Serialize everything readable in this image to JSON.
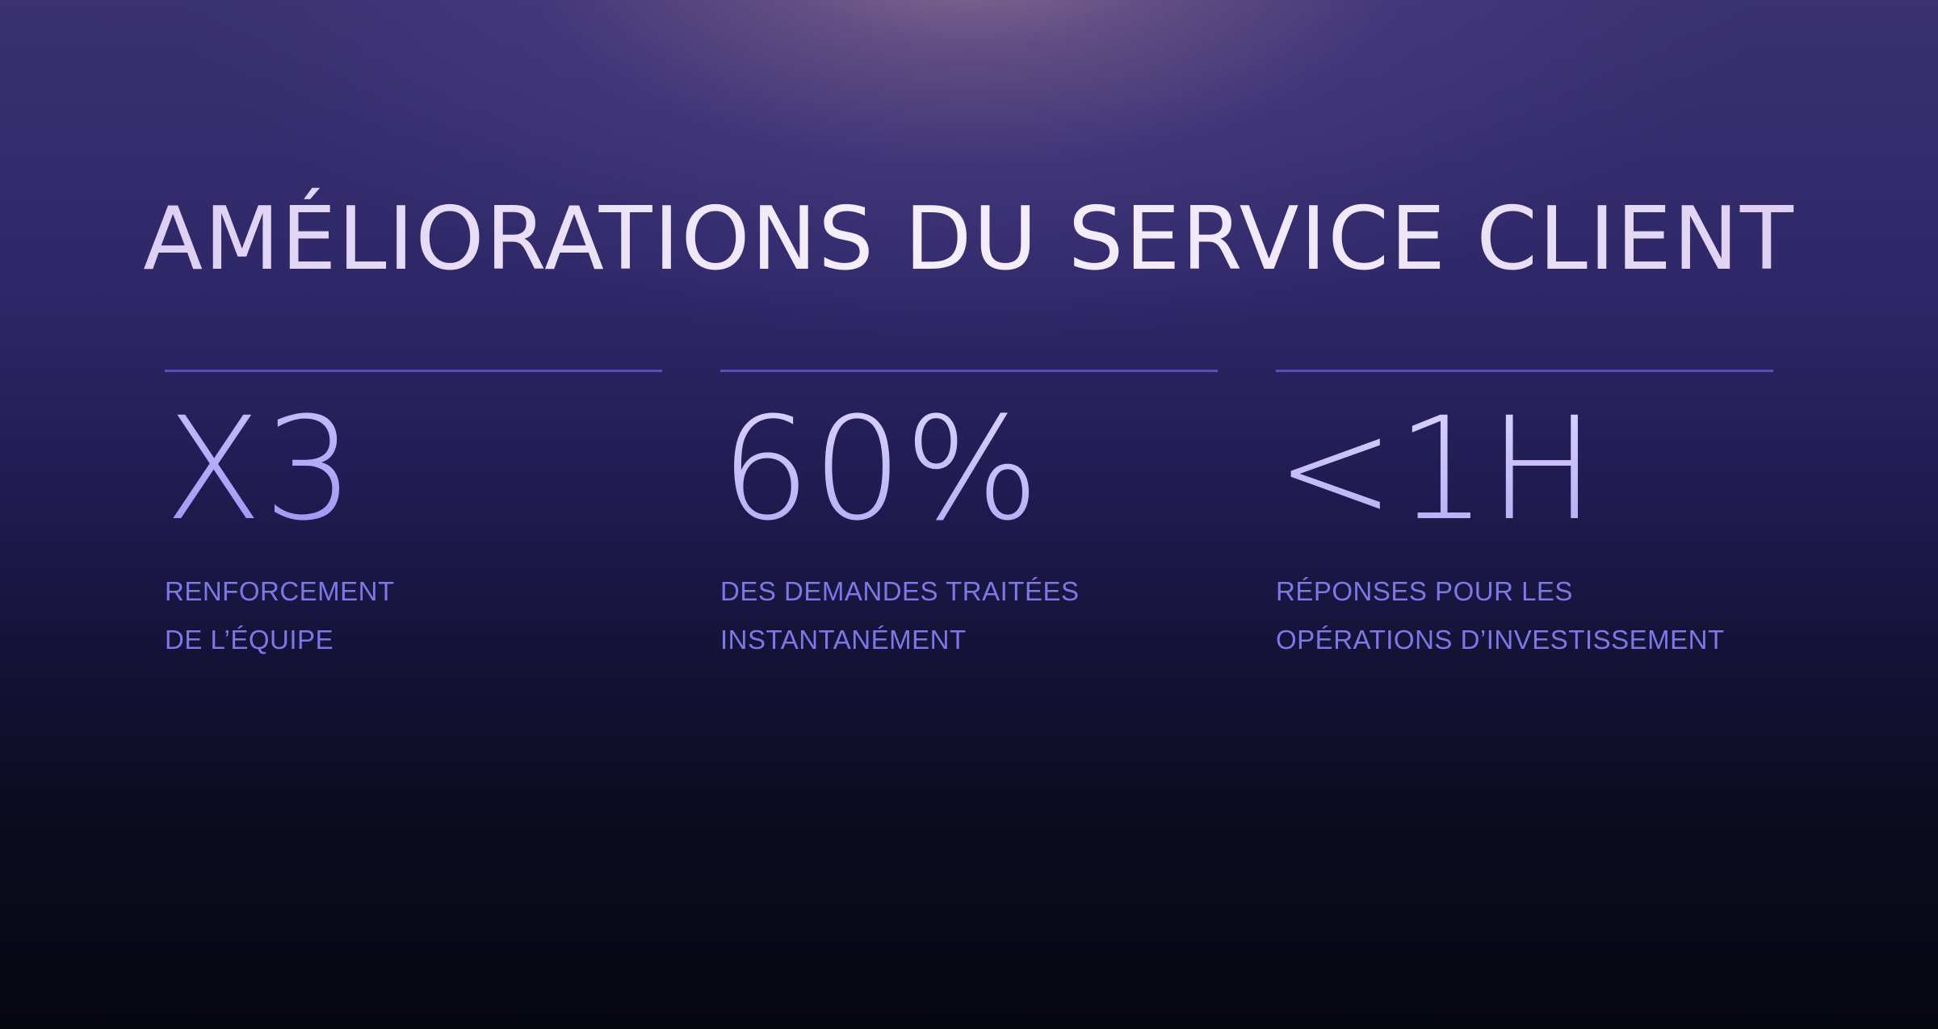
{
  "title": "AMÉLIORATIONS DU SERVICE CLIENT",
  "colors": {
    "background_top": "#6e5a7c",
    "background_mid": "#2a2363",
    "background_bottom": "#07070f",
    "title_text": "#efe8f6",
    "value_text": "#b3a9f5",
    "label_text": "#7f77e6",
    "rule": "#5a54c0"
  },
  "stats": [
    {
      "value": "X3",
      "label_lines": [
        "RENFORCEMENT",
        "DE L’ÉQUIPE"
      ]
    },
    {
      "value": "60%",
      "label_lines": [
        "DES DEMANDES TRAITÉES",
        "INSTANTANÉMENT"
      ]
    },
    {
      "value": "<1H",
      "label_lines": [
        "RÉPONSES POUR LES",
        "OPÉRATIONS D’INVESTISSEMENT"
      ]
    }
  ]
}
